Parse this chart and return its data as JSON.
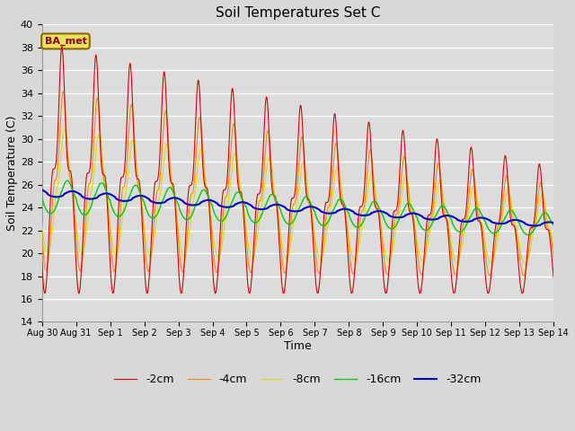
{
  "title": "Soil Temperatures Set C",
  "xlabel": "Time",
  "ylabel": "Soil Temperature (C)",
  "ylim": [
    14,
    40
  ],
  "yticks": [
    14,
    16,
    18,
    20,
    22,
    24,
    26,
    28,
    30,
    32,
    34,
    36,
    38,
    40
  ],
  "x_labels": [
    "Aug 30",
    "Aug 31",
    "Sep 1",
    "Sep 2",
    "Sep 3",
    "Sep 4",
    "Sep 5",
    "Sep 6",
    "Sep 7",
    "Sep 8",
    "Sep 9",
    "Sep 10",
    "Sep 11",
    "Sep 12",
    "Sep 13",
    "Sep 14"
  ],
  "annotation": "BA_met",
  "bg_color": "#d8d8d8",
  "line_colors": {
    "-2cm": "#dd0000",
    "-4cm": "#ff8800",
    "-8cm": "#dddd00",
    "-16cm": "#00cc00",
    "-32cm": "#0000cc"
  },
  "legend_labels": [
    "-2cm",
    "-4cm",
    "-8cm",
    "-16cm",
    "-32cm"
  ]
}
